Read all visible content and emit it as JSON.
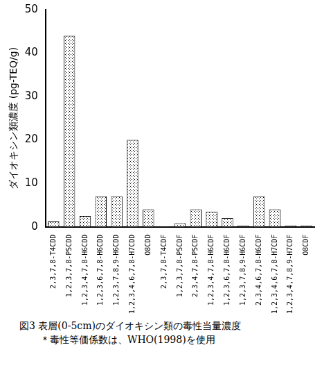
{
  "chart_data": {
    "type": "bar",
    "title": "図3 表層(0-5cm)のダイオキシン類の毒性当量濃度",
    "subtitle": "＊毒性等価係数は、WHO(1998)を使用",
    "y_label": "ダイオキシン類濃度 (pg-TEQ/g)",
    "categories": [
      "2,3,7,8-T4CDD",
      "1,2,3,7,8-P5CDD",
      "1,2,3,4,7,8-H6CDD",
      "1,2,3,6,7,8-H6CDD",
      "1,2,3,7,8,9-H6CDD",
      "1,2,3,4,6,7,8-H7CDD",
      "O8CDD",
      "2,3,7,8-T4CDF",
      "1,2,3,7,8-P5CDF",
      "2,3,4,7,8-P5CDF",
      "1,2,3,4,7,8-H6CDF",
      "1,2,3,6,7,8-H6CDF",
      "1,2,3,7,8,9-H6CDF",
      "2,3,4,6,7,8-H6CDF",
      "1,2,3,4,6,7,8-H7CDF",
      "1,2,3,4,7,8,9-H7CDF",
      "O8CDF"
    ],
    "values": [
      1.2,
      44,
      2.5,
      7,
      7,
      20,
      4,
      0.1,
      0.8,
      4,
      3.5,
      2,
      0.3,
      7,
      4,
      0.3,
      0.3
    ],
    "color": "#000000",
    "ylim": [
      0,
      50
    ],
    "yticks": [
      0,
      10,
      20,
      30,
      40,
      50
    ],
    "grid": false
  }
}
